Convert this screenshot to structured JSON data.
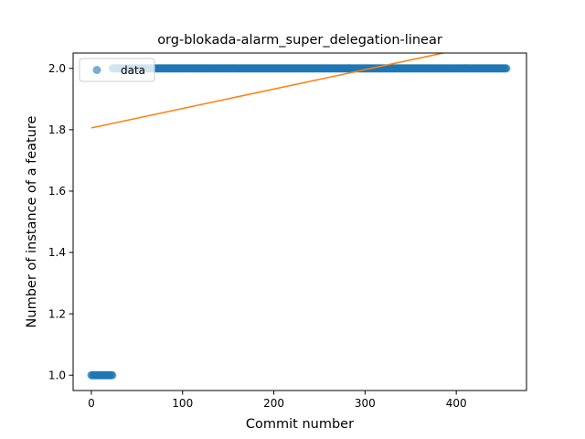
{
  "chart_data": {
    "type": "scatter",
    "title": "org-blokada-alarm_super_delegation-linear",
    "xlabel": "Commit number",
    "ylabel": "Number of instance of a feature",
    "xlim": [
      -20,
      477
    ],
    "ylim": [
      0.95,
      2.05
    ],
    "xticks": [
      0,
      100,
      200,
      300,
      400
    ],
    "yticks": [
      1.0,
      1.2,
      1.4,
      1.6,
      1.8,
      2.0
    ],
    "xtick_labels": [
      "0",
      "100",
      "200",
      "300",
      "400"
    ],
    "ytick_labels": [
      "1.0",
      "1.2",
      "1.4",
      "1.6",
      "1.8",
      "2.0"
    ],
    "grid": false,
    "legend": {
      "position": "upper-left",
      "entries": [
        "data"
      ]
    },
    "series": [
      {
        "name": "data",
        "kind": "scatter",
        "color": "#1f77b4",
        "alpha": 0.6,
        "segments": [
          {
            "x_start": 0,
            "x_end": 23,
            "y": 1.0
          },
          {
            "x_start": 23,
            "x_end": 455,
            "y": 2.0
          }
        ]
      },
      {
        "kind": "line",
        "color": "#ff7f0e",
        "points": [
          {
            "x": 0,
            "y": 1.806
          },
          {
            "x": 455,
            "y": 2.094
          }
        ]
      }
    ]
  }
}
